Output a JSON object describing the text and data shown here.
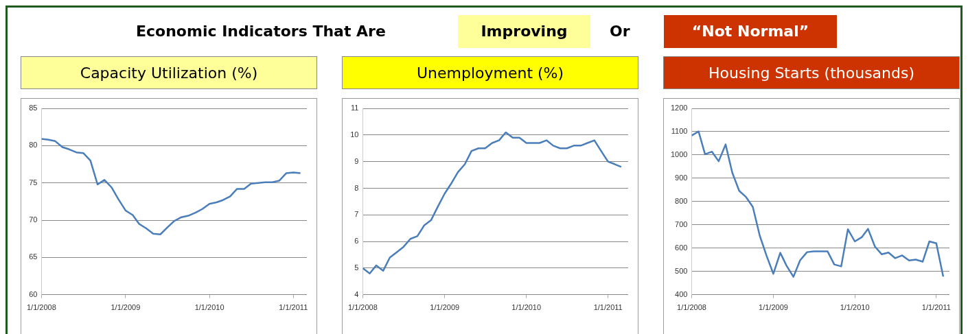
{
  "chart_data": [
    {
      "type": "other",
      "title": "Economic Indicators That Are",
      "annotations": [
        "Improving",
        "Or",
        "“Not Normal”"
      ]
    },
    {
      "type": "line",
      "title": "Capacity Utilization (%)",
      "color": "#4a7ebb",
      "marker": "none",
      "grid": "y",
      "x": [
        "2008-01",
        "2008-02",
        "2008-03",
        "2008-04",
        "2008-05",
        "2008-06",
        "2008-07",
        "2008-08",
        "2008-09",
        "2008-10",
        "2008-11",
        "2008-12",
        "2009-01",
        "2009-02",
        "2009-03",
        "2009-04",
        "2009-05",
        "2009-06",
        "2009-07",
        "2009-08",
        "2009-09",
        "2009-10",
        "2009-11",
        "2009-12",
        "2010-01",
        "2010-02",
        "2010-03",
        "2010-04",
        "2010-05",
        "2010-06",
        "2010-07",
        "2010-08",
        "2010-09",
        "2010-10",
        "2010-11",
        "2010-12",
        "2011-01",
        "2011-02"
      ],
      "values": [
        80.9,
        80.8,
        80.6,
        79.8,
        79.5,
        79.1,
        79.0,
        78.0,
        74.8,
        75.4,
        74.4,
        72.8,
        71.3,
        70.7,
        69.5,
        68.9,
        68.2,
        68.1,
        69.0,
        69.9,
        70.4,
        70.6,
        71.0,
        71.5,
        72.2,
        72.4,
        72.7,
        73.2,
        74.2,
        74.2,
        74.9,
        75.0,
        75.1,
        75.1,
        75.3,
        76.3,
        76.4,
        76.3
      ],
      "xlim": [
        "2008-01-01",
        "2011-03-01"
      ],
      "xticks": [
        {
          "value": "2008-01-01",
          "label": "1/1/2008"
        },
        {
          "value": "2009-01-01",
          "label": "1/1/2009"
        },
        {
          "value": "2010-01-01",
          "label": "1/1/2010"
        },
        {
          "value": "2011-01-01",
          "label": "1/1/2011"
        }
      ],
      "ylim": [
        60,
        85
      ],
      "yticks": [
        60,
        65,
        70,
        75,
        80,
        85
      ]
    },
    {
      "type": "line",
      "title": "Unemployment (%)",
      "color": "#4a7ebb",
      "marker": "none",
      "grid": "y",
      "x": [
        "2008-01",
        "2008-02",
        "2008-03",
        "2008-04",
        "2008-05",
        "2008-06",
        "2008-07",
        "2008-08",
        "2008-09",
        "2008-10",
        "2008-11",
        "2008-12",
        "2009-01",
        "2009-02",
        "2009-03",
        "2009-04",
        "2009-05",
        "2009-06",
        "2009-07",
        "2009-08",
        "2009-09",
        "2009-10",
        "2009-11",
        "2009-12",
        "2010-01",
        "2010-02",
        "2010-03",
        "2010-04",
        "2010-05",
        "2010-06",
        "2010-07",
        "2010-08",
        "2010-09",
        "2010-10",
        "2010-11",
        "2010-12",
        "2011-01",
        "2011-02",
        "2011-03"
      ],
      "values": [
        5.0,
        4.8,
        5.1,
        4.9,
        5.4,
        5.6,
        5.8,
        6.1,
        6.2,
        6.6,
        6.8,
        7.3,
        7.8,
        8.2,
        8.6,
        8.9,
        9.4,
        9.5,
        9.5,
        9.7,
        9.8,
        10.1,
        9.9,
        9.9,
        9.7,
        9.7,
        9.7,
        9.8,
        9.6,
        9.5,
        9.5,
        9.6,
        9.6,
        9.7,
        9.8,
        9.4,
        9.0,
        8.9,
        8.8
      ],
      "xlim": [
        "2008-01-01",
        "2011-04-01"
      ],
      "xticks": [
        {
          "value": "2008-01-01",
          "label": "1/1/2008"
        },
        {
          "value": "2009-01-01",
          "label": "1/1/2009"
        },
        {
          "value": "2010-01-01",
          "label": "1/1/2010"
        },
        {
          "value": "2011-01-01",
          "label": "1/1/2011"
        }
      ],
      "ylim": [
        4,
        11
      ],
      "yticks": [
        4,
        5,
        6,
        7,
        8,
        9,
        10,
        11
      ]
    },
    {
      "type": "line",
      "title": "Housing Starts (thousands)",
      "color": "#4a7ebb",
      "marker": "none",
      "grid": "y",
      "x": [
        "2008-01",
        "2008-02",
        "2008-03",
        "2008-04",
        "2008-05",
        "2008-06",
        "2008-07",
        "2008-08",
        "2008-09",
        "2008-10",
        "2008-11",
        "2008-12",
        "2009-01",
        "2009-02",
        "2009-03",
        "2009-04",
        "2009-05",
        "2009-06",
        "2009-07",
        "2009-08",
        "2009-09",
        "2009-10",
        "2009-11",
        "2009-12",
        "2010-01",
        "2010-02",
        "2010-03",
        "2010-04",
        "2010-05",
        "2010-06",
        "2010-07",
        "2010-08",
        "2010-09",
        "2010-10",
        "2010-11",
        "2010-12",
        "2011-01",
        "2011-02"
      ],
      "values": [
        1083,
        1101,
        1003,
        1014,
        973,
        1045,
        924,
        846,
        819,
        777,
        654,
        569,
        490,
        580,
        525,
        477,
        548,
        583,
        586,
        586,
        586,
        530,
        522,
        681,
        629,
        647,
        683,
        607,
        574,
        581,
        557,
        569,
        547,
        551,
        542,
        629,
        621,
        478
      ],
      "xlim": [
        "2008-01-01",
        "2011-03-01"
      ],
      "xticks": [
        {
          "value": "2008-01-01",
          "label": "1/1/2008"
        },
        {
          "value": "2009-01-01",
          "label": "1/1/2009"
        },
        {
          "value": "2010-01-01",
          "label": "1/1/2010"
        },
        {
          "value": "2011-01-01",
          "label": "1/1/2011"
        }
      ],
      "ylim": [
        400,
        1200
      ],
      "yticks": [
        400,
        500,
        600,
        700,
        800,
        900,
        1000,
        1100,
        1200
      ]
    }
  ]
}
